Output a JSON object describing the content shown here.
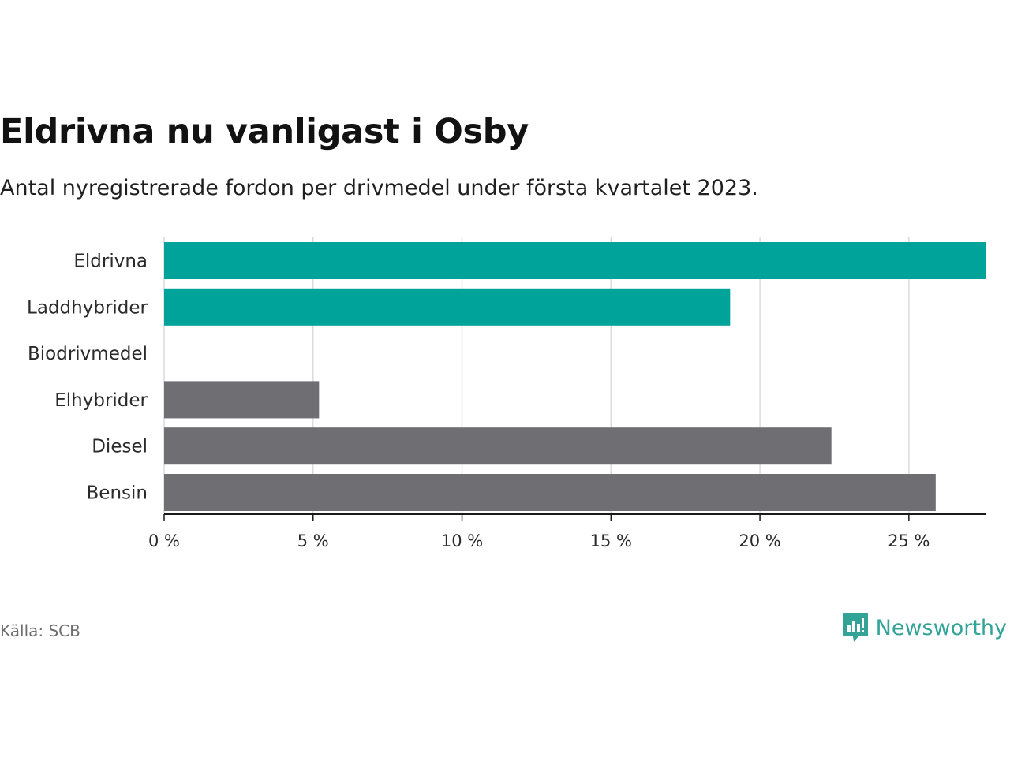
{
  "title": "Eldrivna nu vanligast i Osby",
  "subtitle": "Antal nyregistrerade fordon per drivmedel under första kvartalet 2023.",
  "source": "Källa: SCB",
  "brand": {
    "name": "Newsworthy",
    "icon": "newsworthy-logo-icon",
    "color": "#33a397"
  },
  "chart_data": {
    "type": "bar",
    "orientation": "horizontal",
    "categories": [
      "Eldrivna",
      "Laddhybrider",
      "Biodrivmedel",
      "Elhybrider",
      "Diesel",
      "Bensin"
    ],
    "values": [
      27.6,
      19.0,
      0,
      5.2,
      22.4,
      25.9
    ],
    "colors": [
      "#00a39a",
      "#00a39a",
      "#00a39a",
      "#6e6e73",
      "#6e6e73",
      "#6e6e73"
    ],
    "xlim": [
      0,
      27.6
    ],
    "ticks": [
      0,
      5,
      10,
      15,
      20,
      25
    ],
    "tick_labels": [
      "0 %",
      "5 %",
      "10 %",
      "15 %",
      "20 %",
      "25 %"
    ],
    "unit": "%",
    "grid": "vertical",
    "xlabel": "",
    "ylabel": ""
  }
}
